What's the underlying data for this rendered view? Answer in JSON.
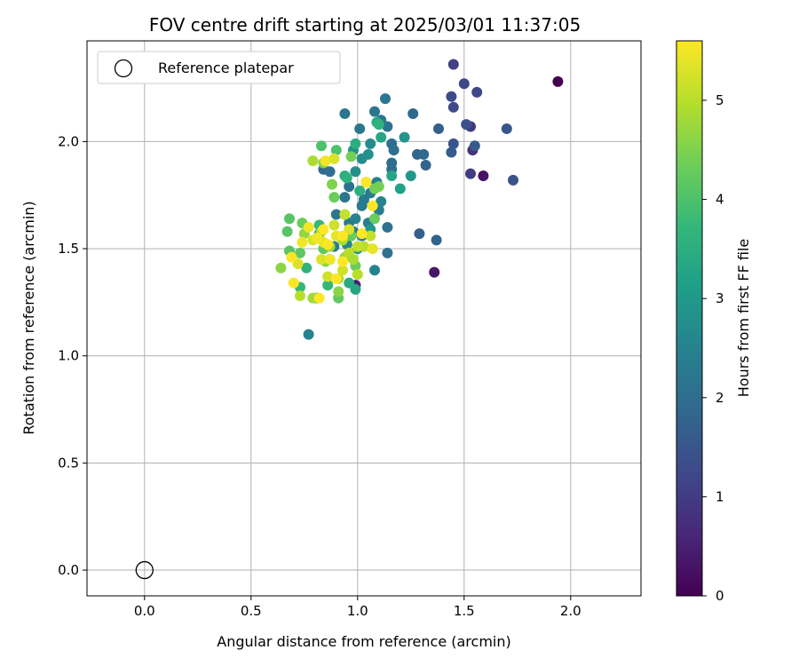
{
  "chart_data": {
    "type": "scatter",
    "title": "FOV centre drift starting at 2025/03/01 11:37:05",
    "xlabel": "Angular distance from reference (arcmin)",
    "ylabel": "Rotation from reference (arcmin)",
    "xlim": [
      -0.27,
      2.33
    ],
    "ylim": [
      -0.12,
      2.47
    ],
    "xticks": [
      0.0,
      0.5,
      1.0,
      1.5,
      2.0
    ],
    "xtick_labels": [
      "0.0",
      "0.5",
      "1.0",
      "1.5",
      "2.0"
    ],
    "yticks": [
      0.0,
      0.5,
      1.0,
      1.5,
      2.0
    ],
    "ytick_labels": [
      "0.0",
      "0.5",
      "1.0",
      "1.5",
      "2.0"
    ],
    "grid": true,
    "legend": {
      "location": "top-left",
      "entries": [
        "Reference platepar"
      ]
    },
    "reference_point": {
      "x": 0.0,
      "y": 0.0,
      "label": "Reference platepar",
      "marker": "open-circle"
    },
    "colorbar": {
      "label": "Hours from first FF file",
      "colormap": "viridis",
      "range": [
        0,
        5.6
      ],
      "ticks": [
        0,
        1,
        2,
        3,
        4,
        5
      ],
      "tick_labels": [
        "0",
        "1",
        "2",
        "3",
        "4",
        "5"
      ]
    },
    "colormap_stops": [
      "#440154",
      "#482878",
      "#3e4989",
      "#31688e",
      "#26828e",
      "#1f9e89",
      "#35b779",
      "#6ece58",
      "#b5de2b",
      "#fde725"
    ],
    "series": [
      {
        "points": [
          [
            1.94,
            2.28,
            0.0
          ],
          [
            1.59,
            1.84,
            0.3
          ],
          [
            1.36,
            1.39,
            0.35
          ],
          [
            0.99,
            1.33,
            0.5
          ],
          [
            1.54,
            1.96,
            0.8
          ],
          [
            1.53,
            2.07,
            0.9
          ],
          [
            1.53,
            1.85,
            1.0
          ],
          [
            1.45,
            2.36,
            1.1
          ],
          [
            1.5,
            2.27,
            1.2
          ],
          [
            1.56,
            2.23,
            1.2
          ],
          [
            1.44,
            2.21,
            1.3
          ],
          [
            1.45,
            2.16,
            1.3
          ],
          [
            1.51,
            2.08,
            1.4
          ],
          [
            1.7,
            2.06,
            1.5
          ],
          [
            1.73,
            1.82,
            1.4
          ],
          [
            1.45,
            1.99,
            1.5
          ],
          [
            1.44,
            1.95,
            1.6
          ],
          [
            1.55,
            1.98,
            1.6
          ],
          [
            1.38,
            2.06,
            1.7
          ],
          [
            1.28,
            1.94,
            1.8
          ],
          [
            1.31,
            1.94,
            1.9
          ],
          [
            1.32,
            1.89,
            1.8
          ],
          [
            1.29,
            1.57,
            1.7
          ],
          [
            1.37,
            1.54,
            1.8
          ],
          [
            1.26,
            2.13,
            1.9
          ],
          [
            1.16,
            1.99,
            2.0
          ],
          [
            1.17,
            1.96,
            2.0
          ],
          [
            1.16,
            1.9,
            2.0
          ],
          [
            1.16,
            1.87,
            2.0
          ],
          [
            1.14,
            1.6,
            2.1
          ],
          [
            1.14,
            1.48,
            2.1
          ],
          [
            1.13,
            2.2,
            2.2
          ],
          [
            1.14,
            2.07,
            2.1
          ],
          [
            1.08,
            2.14,
            2.2
          ],
          [
            1.11,
            2.1,
            2.2
          ],
          [
            1.01,
            2.06,
            2.2
          ],
          [
            0.94,
            2.13,
            2.2
          ],
          [
            0.84,
            1.87,
            1.9
          ],
          [
            0.87,
            1.86,
            2.0
          ],
          [
            0.96,
            1.79,
            2.1
          ],
          [
            0.94,
            1.74,
            2.2
          ],
          [
            0.9,
            1.66,
            2.2
          ],
          [
            0.96,
            1.62,
            2.3
          ],
          [
            0.98,
            1.58,
            2.3
          ],
          [
            1.02,
            1.56,
            2.4
          ],
          [
            1.02,
            1.7,
            2.3
          ],
          [
            1.03,
            1.73,
            2.3
          ],
          [
            1.06,
            1.76,
            2.3
          ],
          [
            1.09,
            1.81,
            2.4
          ],
          [
            1.1,
            1.68,
            2.4
          ],
          [
            1.11,
            1.72,
            2.5
          ],
          [
            1.05,
            1.62,
            2.4
          ],
          [
            1.08,
            1.4,
            2.5
          ],
          [
            0.93,
            1.55,
            2.4
          ],
          [
            0.89,
            1.51,
            2.4
          ],
          [
            0.87,
            1.45,
            2.5
          ],
          [
            0.77,
            1.1,
            2.5
          ],
          [
            0.95,
            1.52,
            2.6
          ],
          [
            0.99,
            1.64,
            2.5
          ],
          [
            1.02,
            1.92,
            2.7
          ],
          [
            1.05,
            1.94,
            2.8
          ],
          [
            1.06,
            1.99,
            2.7
          ],
          [
            0.98,
            1.96,
            2.8
          ],
          [
            0.99,
            1.86,
            2.8
          ],
          [
            1.04,
            1.81,
            2.9
          ],
          [
            1.06,
            1.59,
            3.0
          ],
          [
            1.0,
            1.5,
            2.9
          ],
          [
            1.22,
            2.02,
            2.9
          ],
          [
            1.25,
            1.84,
            3.0
          ],
          [
            1.2,
            1.78,
            3.2
          ],
          [
            1.16,
            1.84,
            3.3
          ],
          [
            1.11,
            2.02,
            3.3
          ],
          [
            1.09,
            2.09,
            3.4
          ],
          [
            1.1,
            2.08,
            3.6
          ],
          [
            0.99,
            1.31,
            3.3
          ],
          [
            0.81,
            1.27,
            3.3
          ],
          [
            0.96,
            1.34,
            3.4
          ],
          [
            0.94,
            1.84,
            3.5
          ],
          [
            0.99,
            1.99,
            3.5
          ],
          [
            0.95,
            1.83,
            3.6
          ],
          [
            1.01,
            1.77,
            3.5
          ],
          [
            0.82,
            1.57,
            3.5
          ],
          [
            0.76,
            1.41,
            3.6
          ],
          [
            0.73,
            1.32,
            3.7
          ],
          [
            0.86,
            1.33,
            3.7
          ],
          [
            0.82,
            1.61,
            3.7
          ],
          [
            0.83,
            1.98,
            4.0
          ],
          [
            0.9,
            1.96,
            4.0
          ],
          [
            0.68,
            1.64,
            4.1
          ],
          [
            0.67,
            1.58,
            4.1
          ],
          [
            0.68,
            1.49,
            4.1
          ],
          [
            0.73,
            1.48,
            4.2
          ],
          [
            0.84,
            1.5,
            4.2
          ],
          [
            0.91,
            1.27,
            4.2
          ],
          [
            0.74,
            1.62,
            4.3
          ],
          [
            0.89,
            1.74,
            4.3
          ],
          [
            0.97,
            1.56,
            4.3
          ],
          [
            0.99,
            1.42,
            4.3
          ],
          [
            1.08,
            1.64,
            4.3
          ],
          [
            1.08,
            1.78,
            4.4
          ],
          [
            1.1,
            1.79,
            4.4
          ],
          [
            0.97,
            1.93,
            4.4
          ],
          [
            0.88,
            1.8,
            4.5
          ],
          [
            0.84,
            1.9,
            4.6
          ],
          [
            0.85,
            1.44,
            4.6
          ],
          [
            0.91,
            1.3,
            4.6
          ],
          [
            0.94,
            1.46,
            4.7
          ],
          [
            0.64,
            1.41,
            4.6
          ],
          [
            0.75,
            1.57,
            4.7
          ],
          [
            0.79,
            1.27,
            4.8
          ],
          [
            0.83,
            1.58,
            4.8
          ],
          [
            0.87,
            1.51,
            4.8
          ],
          [
            0.91,
            1.36,
            4.9
          ],
          [
            0.93,
            1.54,
            4.9
          ],
          [
            0.96,
            1.48,
            5.0
          ],
          [
            0.98,
            1.45,
            4.9
          ],
          [
            1.0,
            1.38,
            5.0
          ],
          [
            1.03,
            1.51,
            5.0
          ],
          [
            1.06,
            1.56,
            5.1
          ],
          [
            0.73,
            1.28,
            5.0
          ],
          [
            0.94,
            1.66,
            5.1
          ],
          [
            1.0,
            1.51,
            5.1
          ],
          [
            0.93,
            1.4,
            5.2
          ],
          [
            0.86,
            1.37,
            5.2
          ],
          [
            0.89,
            1.61,
            5.2
          ],
          [
            0.72,
            1.43,
            5.3
          ],
          [
            0.79,
            1.54,
            5.3
          ],
          [
            0.83,
            1.45,
            5.3
          ],
          [
            0.96,
            1.59,
            5.3
          ],
          [
            1.07,
            1.5,
            5.4
          ],
          [
            0.84,
            1.53,
            5.4
          ],
          [
            0.9,
            1.56,
            5.4
          ],
          [
            0.87,
            1.45,
            5.5
          ],
          [
            0.79,
            1.91,
            4.9
          ],
          [
            0.85,
            1.91,
            5.5
          ],
          [
            0.89,
            1.92,
            5.3
          ],
          [
            0.74,
            1.53,
            5.5
          ],
          [
            0.77,
            1.6,
            5.5
          ],
          [
            0.7,
            1.34,
            5.6
          ],
          [
            0.82,
            1.27,
            5.6
          ],
          [
            0.69,
            1.46,
            5.6
          ],
          [
            0.84,
            1.59,
            5.6
          ],
          [
            0.93,
            1.56,
            5.6
          ],
          [
            1.02,
            1.57,
            5.6
          ],
          [
            1.04,
            1.81,
            5.6
          ],
          [
            1.07,
            1.7,
            5.6
          ],
          [
            0.93,
            1.44,
            5.6
          ],
          [
            0.9,
            1.36,
            5.6
          ],
          [
            0.86,
            1.52,
            5.6
          ],
          [
            0.81,
            1.55,
            5.5
          ]
        ]
      }
    ]
  }
}
